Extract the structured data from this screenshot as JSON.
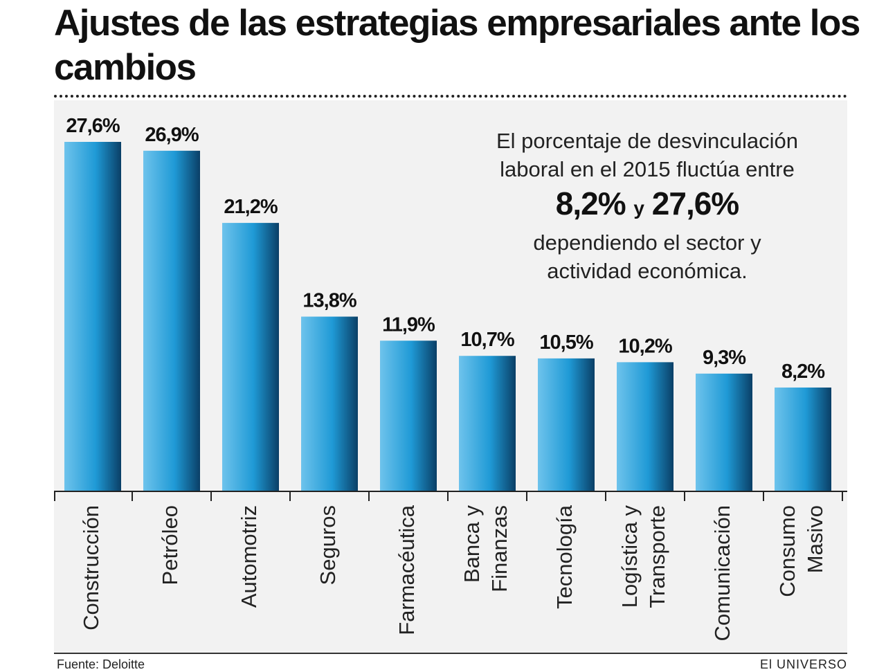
{
  "title": "Ajustes de las estrategias empresariales ante los cambios",
  "note": {
    "line1": "El porcentaje de desvinculación",
    "line2": "laboral en el 2015 fluctúa entre",
    "low": "8,2%",
    "conj": "y",
    "high": "27,6%",
    "line3": "dependiendo el sector y",
    "line4": "actividad económica."
  },
  "footer": {
    "source": "Fuente: Deloitte",
    "brand": "El UNIVERSO"
  },
  "chart_data": {
    "type": "bar",
    "title": "Ajustes de las estrategias empresariales ante los cambios",
    "categories": [
      "Construcción",
      "Petróleo",
      "Automotriz",
      "Seguros",
      "Farmacéutica",
      "Banca y Finanzas",
      "Tecnología",
      "Logística y Transporte",
      "Comunicación",
      "Consumo Masivo"
    ],
    "category_lines": [
      [
        "Construcción"
      ],
      [
        "Petróleo"
      ],
      [
        "Automotriz"
      ],
      [
        "Seguros"
      ],
      [
        "Farmacéutica"
      ],
      [
        "Banca y",
        "Finanzas"
      ],
      [
        "Tecnología"
      ],
      [
        "Logística y",
        "Transporte"
      ],
      [
        "Comunicación"
      ],
      [
        "Consumo",
        "Masivo"
      ]
    ],
    "values": [
      27.6,
      26.9,
      21.2,
      13.8,
      11.9,
      10.7,
      10.5,
      10.2,
      9.3,
      8.2
    ],
    "value_labels": [
      "27,6%",
      "26,9%",
      "21,2%",
      "13,8%",
      "11,9%",
      "10,7%",
      "10,5%",
      "10,2%",
      "9,3%",
      "8,2%"
    ],
    "ylim": [
      0,
      27.6
    ],
    "grid": false,
    "colors": {
      "bar_light": "#6ec3ec",
      "bar_mid": "#1f9ad6",
      "bar_dark": "#0a3f66",
      "panel": "#f2f2f2"
    }
  }
}
